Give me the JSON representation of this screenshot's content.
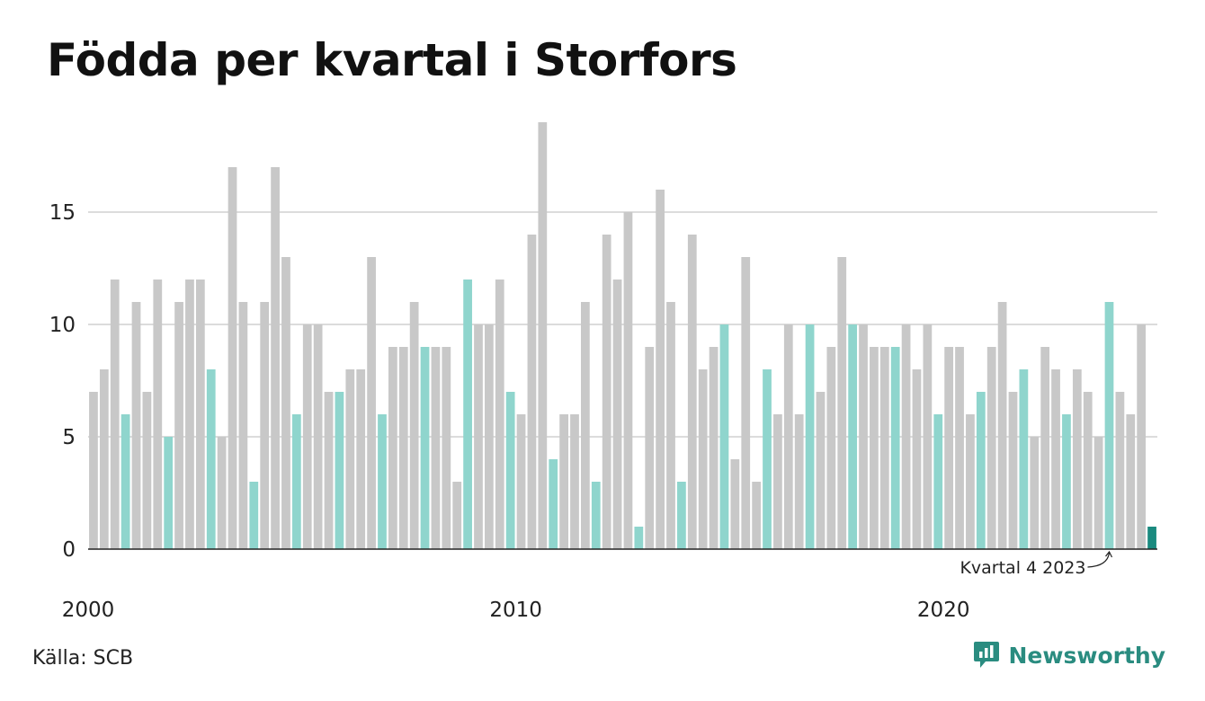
{
  "title": "Födda per kvartal i Storfors",
  "source": "Källa: SCB",
  "brand": {
    "name": "Newsworthy",
    "icon": "newsworthy-logo-icon",
    "color": "#2a8c80"
  },
  "colors": {
    "bar_default": "#c8c8c8",
    "bar_q1": "#8fd5cd",
    "bar_latest": "#1a8a7f",
    "grid": "#dcdcdc",
    "axis": "#222222"
  },
  "chart_data": {
    "type": "bar",
    "title": "Födda per kvartal i Storfors",
    "xlabel": "",
    "ylabel": "",
    "ylim": [
      0,
      19
    ],
    "yticks": [
      0,
      5,
      10,
      15
    ],
    "xtick_labels": [
      "2000",
      "2010",
      "2020"
    ],
    "grid": true,
    "first_period": "2000 Q1",
    "last_period": "2024 Q4",
    "annotation": {
      "text": "Kvartal 4 2023",
      "target": "2023 Q4"
    },
    "highlight": "Q4 bars in teal; latest bar (2024 Q4) dark teal",
    "series": [
      {
        "values": [
          7,
          8,
          12,
          6,
          11,
          7,
          12,
          5,
          11,
          12,
          12,
          8,
          5,
          17,
          11,
          3,
          11,
          17,
          13,
          6,
          10,
          10,
          7,
          7,
          8,
          8,
          13,
          6,
          9,
          9,
          11,
          9,
          9,
          9,
          3,
          12,
          10,
          10,
          12,
          7,
          6,
          14,
          19,
          4,
          6,
          6,
          11,
          3,
          14,
          12,
          15,
          1,
          9,
          16,
          11,
          3,
          14,
          8,
          9,
          10,
          4,
          13,
          3,
          8,
          6,
          10,
          6,
          10,
          7,
          9,
          13,
          10,
          10,
          9,
          9,
          9,
          10,
          8,
          10,
          6,
          9,
          9,
          6,
          7,
          9,
          11,
          7,
          8,
          5,
          9,
          8,
          6,
          8,
          7,
          5,
          11,
          7,
          6,
          10,
          1
        ]
      }
    ]
  }
}
